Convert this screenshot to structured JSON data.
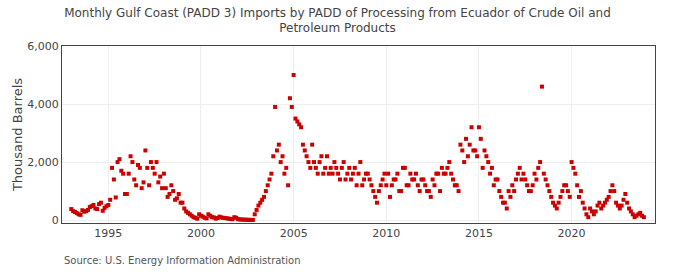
{
  "chart_data": {
    "type": "scatter",
    "title": "Monthly Gulf Coast (PADD 3) Imports by PADD of Processing from Ecuador of Crude Oil and\nPetroleum Products",
    "ylabel": "Thousand Barrels",
    "annotations": [
      "Source: U.S. Energy Information Administration"
    ],
    "color": "#cc0000",
    "marker": "square",
    "grid": true,
    "xlim": [
      1992.5,
      2024.5
    ],
    "ylim": [
      -100,
      6000
    ],
    "xticks": [
      1995,
      2000,
      2005,
      2010,
      2015,
      2020
    ],
    "yticks": [
      0,
      {
        "value": 2000,
        "label": "2,000"
      },
      {
        "value": 4000,
        "label": "4,000"
      },
      {
        "value": 6000,
        "label": "6,000"
      }
    ],
    "x": [
      1993.0,
      1993.2,
      1993.4,
      1993.6,
      1993.8,
      1994.0,
      1994.2,
      1994.4,
      1994.6,
      1994.8,
      1995.0,
      1995.2,
      1995.4,
      1995.6,
      1995.8,
      1996.0,
      1996.2,
      1996.4,
      1996.6,
      1996.8,
      1997.0,
      1997.2,
      1997.4,
      1997.6,
      1997.8,
      1998.0,
      1998.2,
      1998.4,
      1998.6,
      1998.8,
      1999.0,
      1999.2,
      1999.4,
      1999.6,
      1999.8,
      2000.0,
      2000.2,
      2000.4,
      2000.6,
      2000.8,
      2001.0,
      2001.2,
      2001.4,
      2001.6,
      2001.8,
      2002.0,
      2002.2,
      2002.4,
      2002.6,
      2002.8,
      2003.0,
      2003.2,
      2003.4,
      2003.6,
      2003.8,
      2004.0,
      2004.2,
      2004.4,
      2004.6,
      2004.8,
      2005.0,
      2005.2,
      2005.4,
      2005.6,
      2005.8,
      2006.0,
      2006.2,
      2006.4,
      2006.6,
      2006.8,
      2007.0,
      2007.2,
      2007.4,
      2007.6,
      2007.8,
      2008.0,
      2008.2,
      2008.4,
      2008.6,
      2008.8,
      2009.0,
      2009.2,
      2009.4,
      2009.6,
      2009.8,
      2010.0,
      2010.2,
      2010.4,
      2010.6,
      2010.8,
      2011.0,
      2011.2,
      2011.4,
      2011.6,
      2011.8,
      2012.0,
      2012.2,
      2012.4,
      2012.6,
      2012.8,
      2013.0,
      2013.2,
      2013.4,
      2013.6,
      2013.8,
      2014.0,
      2014.2,
      2014.4,
      2014.6,
      2014.8,
      2015.0,
      2015.2,
      2015.4,
      2015.6,
      2015.8,
      2016.0,
      2016.2,
      2016.4,
      2016.6,
      2016.8,
      2017.0,
      2017.2,
      2017.4,
      2017.6,
      2017.8,
      2018.0,
      2018.2,
      2018.4,
      2018.6,
      2018.8,
      2019.0,
      2019.2,
      2019.4,
      2019.6,
      2019.8,
      2020.0,
      2020.2,
      2020.4,
      2020.6,
      2020.8,
      2021.0,
      2021.2,
      2021.4,
      2021.6,
      2021.8,
      2022.0,
      2022.2,
      2022.4,
      2022.6,
      2022.8,
      2023.0,
      2023.2,
      2023.4,
      2023.6,
      2023.8,
      1993.1,
      1993.3,
      1993.5,
      1993.7,
      1993.9,
      1994.1,
      1994.3,
      1994.5,
      1994.7,
      1994.9,
      1995.1,
      1995.3,
      1995.5,
      1995.7,
      1995.9,
      1996.1,
      1996.3,
      1996.5,
      1996.7,
      1996.9,
      1997.1,
      1997.3,
      1997.5,
      1997.7,
      1997.9,
      1998.1,
      1998.3,
      1998.5,
      1998.7,
      1998.9,
      1999.1,
      1999.3,
      1999.5,
      1999.7,
      1999.9,
      2000.1,
      2000.3,
      2000.5,
      2000.7,
      2000.9,
      2001.1,
      2001.3,
      2001.5,
      2001.7,
      2001.9,
      2002.1,
      2002.3,
      2002.5,
      2002.7,
      2002.9,
      2003.1,
      2003.3,
      2003.5,
      2003.7,
      2003.9,
      2004.1,
      2004.3,
      2004.5,
      2004.7,
      2004.9,
      2005.1,
      2005.3,
      2005.5,
      2005.7,
      2005.9,
      2006.1,
      2006.3,
      2006.5,
      2006.7,
      2006.9,
      2007.1,
      2007.3,
      2007.5,
      2007.7,
      2007.9,
      2008.1,
      2008.3,
      2008.5,
      2008.7,
      2008.9,
      2009.1,
      2009.3,
      2009.5,
      2009.7,
      2009.9,
      2010.1,
      2010.3,
      2010.5,
      2010.7,
      2010.9,
      2011.1,
      2011.3,
      2011.5,
      2011.7,
      2011.9,
      2012.1,
      2012.3,
      2012.5,
      2012.7,
      2012.9,
      2013.1,
      2013.3,
      2013.5,
      2013.7,
      2013.9,
      2014.1,
      2014.3,
      2014.5,
      2014.7,
      2014.9,
      2015.1,
      2015.3,
      2015.5,
      2015.7,
      2015.9,
      2016.1,
      2016.3,
      2016.5,
      2016.7,
      2016.9,
      2017.1,
      2017.3,
      2017.5,
      2017.7,
      2017.9,
      2018.1,
      2018.3,
      2018.5,
      2018.7,
      2018.9,
      2019.1,
      2019.3,
      2019.5,
      2019.7,
      2019.9,
      2020.1,
      2020.3,
      2020.5,
      2020.7,
      2020.9,
      2021.1,
      2021.3,
      2021.5,
      2021.7,
      2021.9,
      2022.1,
      2022.3,
      2022.5,
      2022.7,
      2022.9,
      2023.1,
      2023.3,
      2023.5,
      2023.7,
      2023.9
    ],
    "values": [
      380,
      280,
      200,
      340,
      310,
      450,
      520,
      380,
      600,
      420,
      520,
      1800,
      780,
      2100,
      1600,
      900,
      2200,
      1400,
      1900,
      1100,
      2400,
      1200,
      1800,
      2000,
      1500,
      1600,
      800,
      1200,
      700,
      900,
      600,
      300,
      200,
      100,
      50,
      150,
      80,
      200,
      100,
      50,
      120,
      80,
      60,
      40,
      100,
      30,
      20,
      15,
      10,
      5,
      350,
      600,
      800,
      1200,
      1600,
      3900,
      2600,
      2200,
      1800,
      4200,
      5000,
      3400,
      3200,
      2400,
      2000,
      2600,
      1800,
      2000,
      1600,
      2200,
      1800,
      2000,
      1600,
      1800,
      1400,
      1800,
      1600,
      1200,
      2000,
      1400,
      1600,
      1200,
      800,
      1000,
      1400,
      1200,
      800,
      1400,
      1600,
      1000,
      1800,
      1200,
      1400,
      1600,
      1000,
      1400,
      1000,
      800,
      1200,
      1600,
      1800,
      1600,
      2000,
      1400,
      1200,
      2600,
      2000,
      2200,
      3200,
      2400,
      3200,
      1800,
      2200,
      1600,
      1200,
      1400,
      800,
      600,
      1000,
      1200,
      1400,
      1800,
      1600,
      1200,
      1000,
      1600,
      1800,
      4600,
      1400,
      1000,
      600,
      400,
      800,
      1200,
      1000,
      2000,
      1600,
      800,
      600,
      200,
      400,
      200,
      500,
      400,
      600,
      800,
      1200,
      600,
      400,
      700,
      600,
      300,
      100,
      200,
      150,
      310,
      240,
      180,
      290,
      350,
      480,
      400,
      550,
      320,
      480,
      700,
      1400,
      2000,
      1700,
      900,
      1600,
      2000,
      1200,
      1800,
      1300,
      1800,
      2000,
      1600,
      1300,
      1100,
      1100,
      900,
      1000,
      750,
      600,
      400,
      250,
      150,
      80,
      200,
      120,
      60,
      150,
      90,
      70,
      90,
      70,
      50,
      30,
      80,
      25,
      15,
      8,
      5,
      200,
      500,
      700,
      1000,
      1400,
      2200,
      2400,
      2000,
      1600,
      1200,
      3900,
      3500,
      3300,
      2600,
      2200,
      1800,
      2000,
      1600,
      2200,
      1800,
      1600,
      1600,
      1800,
      1400,
      2000,
      1600,
      1400,
      1800,
      1600,
      1200,
      1600,
      1400,
      1000,
      600,
      1200,
      1600,
      1600,
      1200,
      1400,
      1000,
      1800,
      1200,
      1600,
      1400,
      1200,
      1400,
      1200,
      1000,
      1400,
      1600,
      1000,
      1600,
      1800,
      1600,
      1200,
      1000,
      2400,
      2800,
      2600,
      2400,
      2200,
      2800,
      2400,
      2000,
      1800,
      1400,
      1000,
      600,
      400,
      800,
      1000,
      1600,
      1400,
      1400,
      1000,
      1200,
      1400,
      2000,
      1600,
      1200,
      800,
      500,
      600,
      1000,
      1200,
      800,
      1800,
      1200,
      1000,
      400,
      100,
      300,
      300,
      600,
      500,
      700,
      1000,
      1000,
      500,
      500,
      900,
      400,
      200,
      150,
      250,
      100
    ]
  }
}
